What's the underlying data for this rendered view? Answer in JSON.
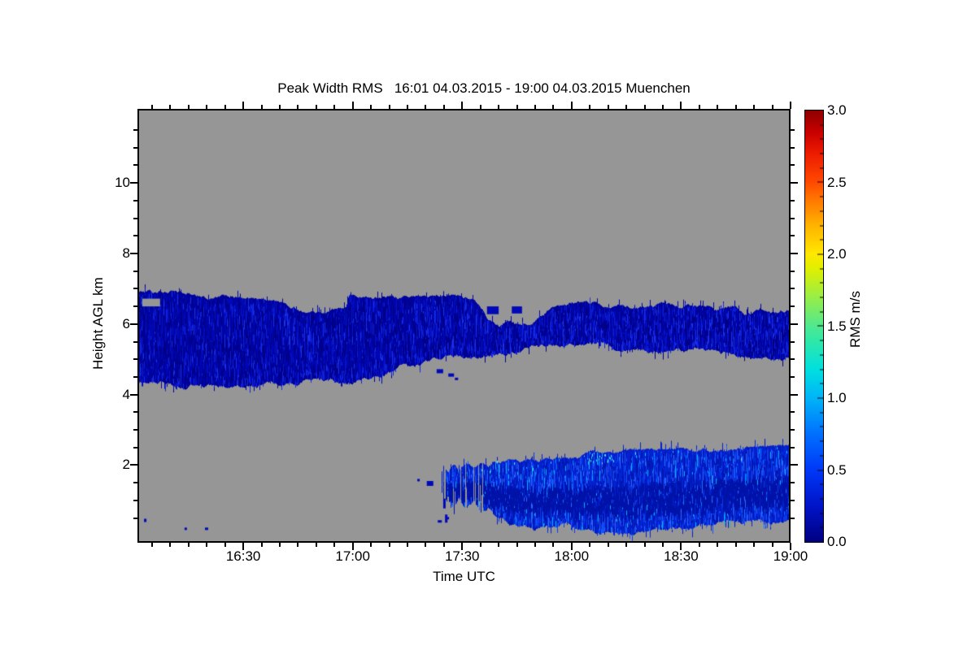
{
  "chart_data": {
    "type": "heatmap",
    "title": "Peak Width RMS   16:01 04.03.2015 - 19:00 04.03.2015 Muenchen",
    "xlabel": "Time UTC",
    "ylabel": "Height AGL km",
    "colorbar_label": "RMS m/s",
    "site": "Muenchen",
    "time_start": "16:01 04.03.2015",
    "time_end": "19:00 04.03.2015",
    "no_data_color": "#969696",
    "x_axis": {
      "min_minutes": 1,
      "max_minutes": 180,
      "major_ticks": [
        {
          "m": 30,
          "label": "16:30"
        },
        {
          "m": 60,
          "label": "17:00"
        },
        {
          "m": 90,
          "label": "17:30"
        },
        {
          "m": 120,
          "label": "18:00"
        },
        {
          "m": 150,
          "label": "18:30"
        },
        {
          "m": 180,
          "label": "19:00"
        }
      ],
      "minor_step_minutes": 5
    },
    "y_axis": {
      "min_km": -0.2,
      "max_km": 12.1,
      "major_ticks": [
        {
          "v": 2,
          "label": "2"
        },
        {
          "v": 4,
          "label": "4"
        },
        {
          "v": 6,
          "label": "6"
        },
        {
          "v": 8,
          "label": "8"
        },
        {
          "v": 10,
          "label": "10"
        }
      ],
      "minor_step_km": 0.5,
      "minor_min": 0.5,
      "minor_max": 11.5
    },
    "colorbar": {
      "min": 0.0,
      "max": 3.0,
      "major_ticks": [
        {
          "v": 0.0,
          "label": "0.0"
        },
        {
          "v": 0.5,
          "label": "0.5"
        },
        {
          "v": 1.0,
          "label": "1.0"
        },
        {
          "v": 1.5,
          "label": "1.5"
        },
        {
          "v": 2.0,
          "label": "2.0"
        },
        {
          "v": 2.5,
          "label": "2.5"
        },
        {
          "v": 3.0,
          "label": "3.0"
        }
      ],
      "minor_step": 0.1,
      "gradient_stops": [
        [
          0.0,
          "#000082"
        ],
        [
          0.25,
          "#0014C8"
        ],
        [
          0.5,
          "#0038F8"
        ],
        [
          0.75,
          "#0070FF"
        ],
        [
          1.0,
          "#00B4F8"
        ],
        [
          1.2,
          "#00E0E0"
        ],
        [
          1.4,
          "#30E8A8"
        ],
        [
          1.5,
          "#50E890"
        ],
        [
          1.7,
          "#98EE48"
        ],
        [
          1.9,
          "#E0F000"
        ],
        [
          2.0,
          "#FFE800"
        ],
        [
          2.2,
          "#FFB400"
        ],
        [
          2.4,
          "#FF7000"
        ],
        [
          2.5,
          "#FF4A00"
        ],
        [
          2.7,
          "#EE1C00"
        ],
        [
          2.85,
          "#C80000"
        ],
        [
          3.0,
          "#8E0000"
        ]
      ]
    },
    "bands": [
      {
        "name": "mid-level-layer-4.3-7km",
        "seed": 7,
        "t_start": 1,
        "t_end": 180,
        "base": "#0003A0",
        "palette": [
          [
            "#000188",
            0.38
          ],
          [
            "#0007B4",
            0.27
          ],
          [
            "#0712C8",
            0.17
          ],
          [
            "#0D1FD8",
            0.11
          ],
          [
            "#1A32E8",
            0.07
          ]
        ],
        "tex_n": 14,
        "tex_len": 16,
        "top_jitter": 5,
        "bottom_jitter": 6,
        "spike_prob": 0.1,
        "spike_len": 9,
        "bottom_bright_prob": 0.22,
        "bottom_bright": "#1228E0",
        "top_km": [
          [
            1,
            6.92
          ],
          [
            6,
            6.88
          ],
          [
            12,
            6.82
          ],
          [
            18,
            6.75
          ],
          [
            24,
            6.72
          ],
          [
            30,
            6.66
          ],
          [
            36,
            6.58
          ],
          [
            42,
            6.5
          ],
          [
            48,
            6.42
          ],
          [
            54,
            6.38
          ],
          [
            58,
            6.4
          ],
          [
            59,
            6.72
          ],
          [
            64,
            6.7
          ],
          [
            70,
            6.72
          ],
          [
            76,
            6.68
          ],
          [
            82,
            6.7
          ],
          [
            88,
            6.72
          ],
          [
            93,
            6.6
          ],
          [
            96,
            6.25
          ],
          [
            97,
            6.0
          ],
          [
            100,
            5.94
          ],
          [
            103,
            6.02
          ],
          [
            106,
            5.92
          ],
          [
            109,
            5.98
          ],
          [
            112,
            6.18
          ],
          [
            115,
            6.5
          ],
          [
            120,
            6.58
          ],
          [
            125,
            6.6
          ],
          [
            130,
            6.52
          ],
          [
            135,
            6.58
          ],
          [
            140,
            6.48
          ],
          [
            145,
            6.55
          ],
          [
            150,
            6.42
          ],
          [
            155,
            6.5
          ],
          [
            160,
            6.3
          ],
          [
            164,
            6.42
          ],
          [
            168,
            6.28
          ],
          [
            172,
            6.38
          ],
          [
            176,
            6.3
          ],
          [
            180,
            6.38
          ]
        ],
        "bottom_km": [
          [
            1,
            4.3
          ],
          [
            8,
            4.33
          ],
          [
            15,
            4.28
          ],
          [
            22,
            4.32
          ],
          [
            29,
            4.27
          ],
          [
            36,
            4.3
          ],
          [
            43,
            4.26
          ],
          [
            50,
            4.32
          ],
          [
            54,
            4.4
          ],
          [
            58,
            4.38
          ],
          [
            62,
            4.48
          ],
          [
            66,
            4.52
          ],
          [
            70,
            4.6
          ],
          [
            74,
            4.75
          ],
          [
            77,
            4.68
          ],
          [
            80,
            4.88
          ],
          [
            84,
            4.95
          ],
          [
            88,
            5.0
          ],
          [
            92,
            5.08
          ],
          [
            96,
            5.12
          ],
          [
            100,
            5.18
          ],
          [
            105,
            5.28
          ],
          [
            110,
            5.33
          ],
          [
            116,
            5.36
          ],
          [
            122,
            5.33
          ],
          [
            128,
            5.36
          ],
          [
            134,
            5.3
          ],
          [
            140,
            5.33
          ],
          [
            146,
            5.26
          ],
          [
            152,
            5.22
          ],
          [
            158,
            5.15
          ],
          [
            163,
            5.05
          ],
          [
            168,
            4.98
          ],
          [
            172,
            4.92
          ],
          [
            176,
            4.97
          ],
          [
            180,
            4.95
          ]
        ]
      },
      {
        "name": "boundary-layer-echo-0.2-2.5km",
        "seed": 13,
        "t_start": 84,
        "t_end": 180,
        "base": "#0520CC",
        "palette": [
          [
            "#0016B0",
            0.3
          ],
          [
            "#0028DC",
            0.24
          ],
          [
            "#0D3CEC",
            0.18
          ],
          [
            "#1E52F4",
            0.13
          ],
          [
            "#2E68FA",
            0.08
          ],
          [
            "#0080FF",
            0.04
          ],
          [
            "#00B8F8",
            0.03
          ]
        ],
        "tex_n": 13,
        "tex_len": 14,
        "top_jitter": 5,
        "bottom_jitter": 9,
        "spike_prob": 0.15,
        "spike_len": 10,
        "core_dark": "#0012A8",
        "patchy_until": 96,
        "patchy_prob": 0.2,
        "cyan_zones": [
          [
            123,
            131,
            0.5
          ],
          [
            95,
            180,
            0.05
          ]
        ],
        "cyan_colors": [
          "#00D4FF",
          "#55ECFF"
        ],
        "top_km": [
          [
            84,
            1.78
          ],
          [
            85,
            1.92
          ],
          [
            86,
            1.7
          ],
          [
            87.5,
            1.95
          ],
          [
            89,
            1.78
          ],
          [
            91,
            1.98
          ],
          [
            93,
            1.88
          ],
          [
            95,
            2.02
          ],
          [
            97,
            1.92
          ],
          [
            99,
            2.0
          ],
          [
            101,
            2.04
          ],
          [
            104,
            2.06
          ],
          [
            107,
            2.1
          ],
          [
            110,
            2.12
          ],
          [
            113,
            2.17
          ],
          [
            116,
            2.2
          ],
          [
            119,
            2.24
          ],
          [
            122,
            2.28
          ],
          [
            125,
            2.33
          ],
          [
            127,
            2.38
          ],
          [
            129,
            2.36
          ],
          [
            131,
            2.34
          ],
          [
            134,
            2.36
          ],
          [
            138,
            2.34
          ],
          [
            142,
            2.36
          ],
          [
            146,
            2.35
          ],
          [
            150,
            2.38
          ],
          [
            154,
            2.37
          ],
          [
            158,
            2.4
          ],
          [
            162,
            2.39
          ],
          [
            166,
            2.42
          ],
          [
            170,
            2.42
          ],
          [
            174,
            2.44
          ],
          [
            180,
            2.48
          ]
        ],
        "bottom_km": [
          [
            84,
            1.32
          ],
          [
            85,
            1.05
          ],
          [
            86,
            1.28
          ],
          [
            87.5,
            0.9
          ],
          [
            89,
            1.15
          ],
          [
            91,
            0.8
          ],
          [
            93,
            1.0
          ],
          [
            95,
            0.62
          ],
          [
            97,
            0.8
          ],
          [
            99,
            0.5
          ],
          [
            101,
            0.55
          ],
          [
            104,
            0.35
          ],
          [
            107,
            0.4
          ],
          [
            110,
            0.28
          ],
          [
            113,
            0.33
          ],
          [
            116,
            0.24
          ],
          [
            119,
            0.3
          ],
          [
            122,
            0.2
          ],
          [
            125,
            0.26
          ],
          [
            128,
            0.2
          ],
          [
            131,
            0.24
          ],
          [
            135,
            0.2
          ],
          [
            139,
            0.26
          ],
          [
            143,
            0.2
          ],
          [
            147,
            0.24
          ],
          [
            151,
            0.2
          ],
          [
            155,
            0.26
          ],
          [
            159,
            0.2
          ],
          [
            163,
            0.24
          ],
          [
            167,
            0.2
          ],
          [
            171,
            0.26
          ],
          [
            175,
            0.22
          ],
          [
            180,
            0.24
          ]
        ]
      }
    ],
    "holes": [
      {
        "t0": 2.3,
        "t1": 7.2,
        "km_low": 6.5,
        "km_high": 6.72
      }
    ],
    "blobs": [
      {
        "t0": 96.8,
        "t1": 100.0,
        "km_low": 6.28,
        "km_high": 6.5
      },
      {
        "t0": 103.6,
        "t1": 106.4,
        "km_low": 6.3,
        "km_high": 6.5
      },
      {
        "t0": 25.5,
        "t1": 27.2,
        "km_low": 6.58,
        "km_high": 6.72
      }
    ],
    "specks": [
      {
        "t": 2.8,
        "km": 0.48,
        "w": 3,
        "h": 4
      },
      {
        "t": 13.9,
        "km": 0.23,
        "w": 3,
        "h": 3
      },
      {
        "t": 19.5,
        "km": 0.23,
        "w": 4,
        "h": 3
      },
      {
        "t": 77.7,
        "km": 1.61,
        "w": 3,
        "h": 3
      },
      {
        "t": 80.3,
        "km": 1.55,
        "w": 8,
        "h": 6
      },
      {
        "t": 83.3,
        "km": 0.44,
        "w": 5,
        "h": 3
      },
      {
        "t": 85.5,
        "km": 0.53,
        "w": 4,
        "h": 3
      },
      {
        "t": 84.8,
        "km": 1.05,
        "w": 3,
        "h": 12
      },
      {
        "t": 85.3,
        "km": 0.6,
        "w": 3,
        "h": 10
      },
      {
        "t": 83.0,
        "km": 4.72,
        "w": 8,
        "h": 5
      },
      {
        "t": 86.2,
        "km": 4.6,
        "w": 7,
        "h": 4
      },
      {
        "t": 88.0,
        "km": 4.48,
        "w": 4,
        "h": 3
      }
    ],
    "speck_color": "#0008B8"
  }
}
